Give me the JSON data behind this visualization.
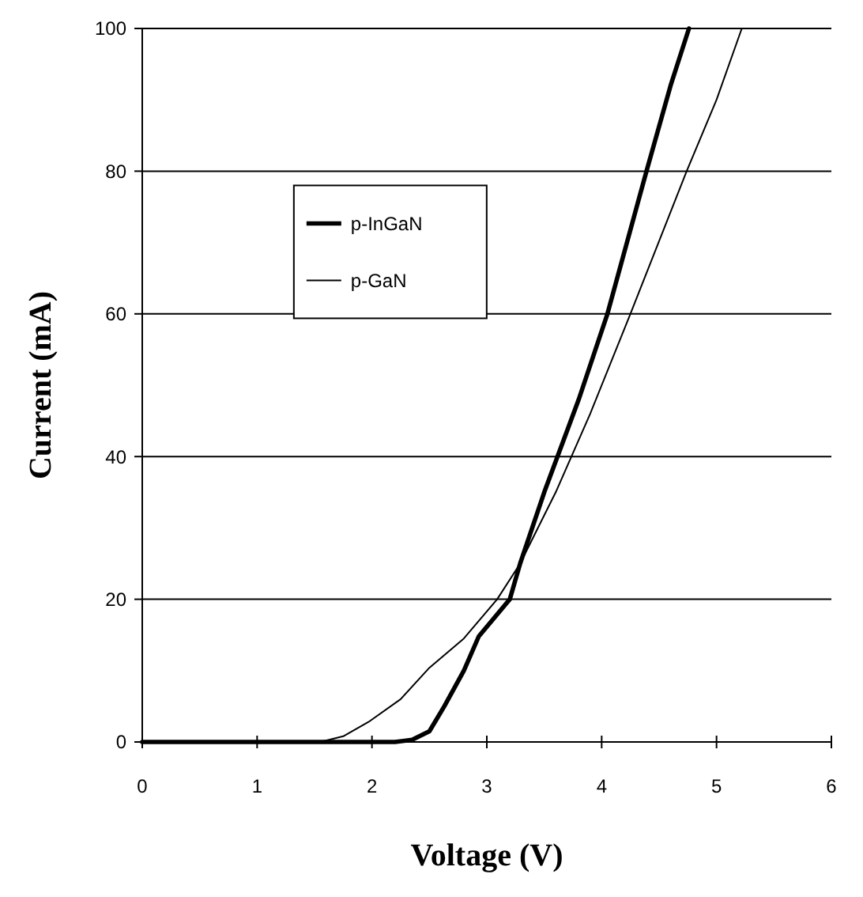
{
  "chart_data": {
    "type": "line",
    "xlabel": "Voltage (V)",
    "ylabel": "Current (mA)",
    "xlim": [
      0,
      6
    ],
    "xticks": [
      0,
      1,
      2,
      3,
      4,
      5,
      6
    ],
    "ylim": [
      0,
      100
    ],
    "yticks": [
      0,
      20,
      40,
      60,
      80,
      100
    ],
    "grid": "y",
    "legend": "top left",
    "marker": "none",
    "line_style": "solid",
    "series": [
      {
        "name": "p-InGaN",
        "color": "#000000",
        "x": [
          0,
          2.2,
          2.35,
          2.5,
          2.63,
          2.8,
          2.93,
          3.2,
          3.29,
          3.5,
          3.8,
          4.05,
          4.39,
          4.6,
          4.76
        ],
        "values": [
          0,
          0,
          0.3,
          1.5,
          5,
          10,
          14.8,
          20,
          25,
          35,
          48,
          60,
          80,
          92,
          100
        ]
      },
      {
        "name": "p-GaN",
        "color": "#000000",
        "x": [
          0,
          1.55,
          1.75,
          1.97,
          2.25,
          2.5,
          2.8,
          3.09,
          3.29,
          3.6,
          3.9,
          4.25,
          4.74,
          5.0,
          5.22
        ],
        "values": [
          0,
          0,
          0.8,
          2.8,
          6,
          10.4,
          14.5,
          20,
          25,
          35,
          46,
          60,
          80,
          90,
          100
        ]
      }
    ]
  }
}
